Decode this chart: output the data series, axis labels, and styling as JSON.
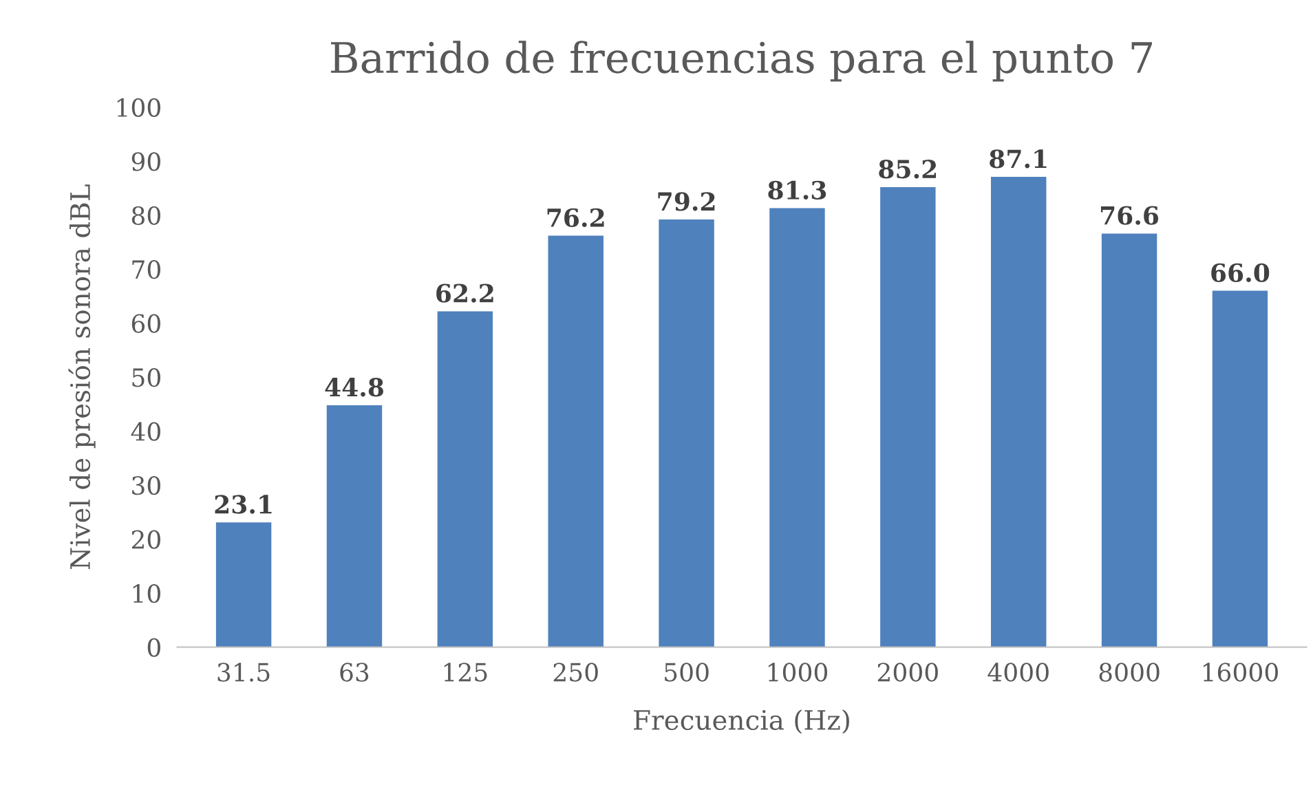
{
  "chart_data": {
    "type": "bar",
    "title": "Barrido de frecuencias para el punto 7",
    "xlabel": "Frecuencia (Hz)",
    "ylabel": "Nivel de presión sonora dBL",
    "categories": [
      "31.5",
      "63",
      "125",
      "250",
      "500",
      "1000",
      "2000",
      "4000",
      "8000",
      "16000"
    ],
    "values": [
      23.1,
      44.8,
      62.2,
      76.2,
      79.2,
      81.3,
      85.2,
      87.1,
      76.6,
      66.0
    ],
    "value_labels": [
      "23.1",
      "44.8",
      "62.2",
      "76.2",
      "79.2",
      "81.3",
      "85.2",
      "87.1",
      "76.6",
      "66.0"
    ],
    "color": "#4f81bd",
    "ylim": [
      0,
      100
    ],
    "yticks": [
      0,
      10,
      20,
      30,
      40,
      50,
      60,
      70,
      80,
      90,
      100
    ],
    "grid": false,
    "legend": false
  }
}
